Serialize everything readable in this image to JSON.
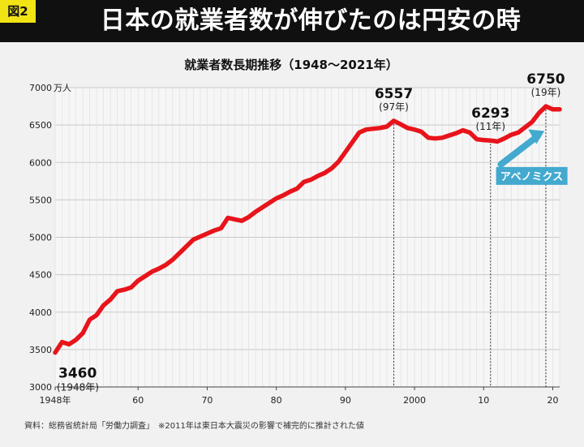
{
  "header": {
    "badge": "図2",
    "title": "日本の就業者数が伸びたのは円安の時"
  },
  "chart_data": {
    "type": "line",
    "title": "就業者数長期推移（1948～2021年）",
    "yunit": "万人",
    "ylim": [
      3000,
      7000
    ],
    "xlim": [
      1948,
      2021
    ],
    "y_ticks": [
      "3000",
      "3500",
      "4000",
      "4500",
      "5000",
      "5500",
      "6000",
      "6500",
      "7000"
    ],
    "x_ticks": [
      {
        "x": 1948,
        "label": "1948年"
      },
      {
        "x": 1960,
        "label": "60"
      },
      {
        "x": 1970,
        "label": "70"
      },
      {
        "x": 1980,
        "label": "80"
      },
      {
        "x": 1990,
        "label": "90"
      },
      {
        "x": 2000,
        "label": "2000"
      },
      {
        "x": 2010,
        "label": "10"
      },
      {
        "x": 2020,
        "label": "20"
      }
    ],
    "grid": true,
    "series": [
      {
        "color": "#e8141b",
        "x": [
          1948,
          1949,
          1950,
          1951,
          1952,
          1953,
          1954,
          1955,
          1956,
          1957,
          1958,
          1959,
          1960,
          1961,
          1962,
          1963,
          1964,
          1965,
          1966,
          1967,
          1968,
          1969,
          1970,
          1971,
          1972,
          1973,
          1974,
          1975,
          1976,
          1977,
          1978,
          1979,
          1980,
          1981,
          1982,
          1983,
          1984,
          1985,
          1986,
          1987,
          1988,
          1989,
          1990,
          1991,
          1992,
          1993,
          1994,
          1995,
          1996,
          1997,
          1998,
          1999,
          2000,
          2001,
          2002,
          2003,
          2004,
          2005,
          2006,
          2007,
          2008,
          2009,
          2010,
          2011,
          2012,
          2013,
          2014,
          2015,
          2016,
          2017,
          2018,
          2019,
          2020,
          2021
        ],
        "values": [
          3460,
          3600,
          3570,
          3630,
          3720,
          3900,
          3960,
          4090,
          4170,
          4280,
          4300,
          4330,
          4420,
          4480,
          4540,
          4580,
          4630,
          4700,
          4790,
          4880,
          4970,
          5010,
          5050,
          5090,
          5120,
          5260,
          5240,
          5220,
          5270,
          5340,
          5400,
          5460,
          5520,
          5560,
          5610,
          5650,
          5740,
          5770,
          5820,
          5860,
          5920,
          6010,
          6140,
          6270,
          6400,
          6440,
          6450,
          6460,
          6480,
          6557,
          6510,
          6460,
          6440,
          6410,
          6330,
          6320,
          6330,
          6360,
          6390,
          6430,
          6400,
          6310,
          6300,
          6293,
          6280,
          6320,
          6370,
          6400,
          6470,
          6540,
          6660,
          6750,
          6710,
          6710
        ]
      }
    ],
    "annotations": [
      {
        "x": 1948,
        "value": "3460",
        "sub": "(1948年)"
      },
      {
        "x": 1997,
        "value": "6557",
        "sub": "(97年)"
      },
      {
        "x": 2011,
        "value": "6293",
        "sub": "(11年)"
      },
      {
        "x": 2019,
        "value": "6750",
        "sub": "(19年)"
      }
    ],
    "callout": {
      "label": "アベノミクス",
      "color": "#43a9cf"
    },
    "source_note": "資料：総務省統計局「労働力調査」　※2011年は東日本大震災の影響で補完的に推計された値"
  }
}
